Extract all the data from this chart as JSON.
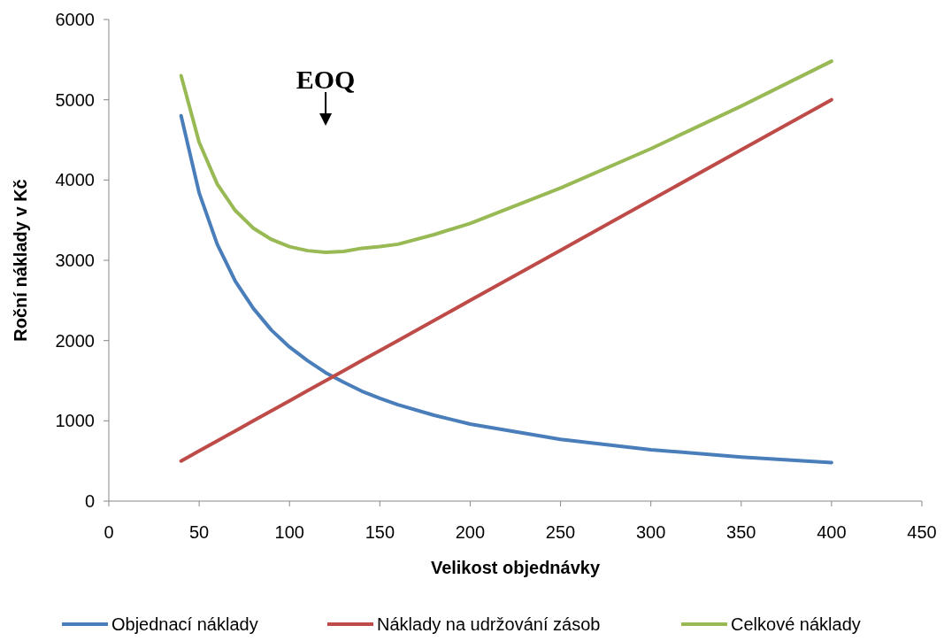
{
  "chart_data": {
    "type": "line",
    "xlabel": "Velikost objednávky",
    "ylabel": "Roční náklady v Kč",
    "x": [
      40,
      50,
      60,
      70,
      80,
      90,
      100,
      110,
      120,
      130,
      140,
      150,
      160,
      180,
      200,
      250,
      300,
      350,
      400
    ],
    "series": [
      {
        "name": "Objednací náklady",
        "color": "#4a7ebb",
        "values": [
          4800,
          3840,
          3200,
          2740,
          2400,
          2130,
          1920,
          1750,
          1600,
          1480,
          1370,
          1280,
          1200,
          1070,
          960,
          770,
          640,
          550,
          480
        ]
      },
      {
        "name": "Náklady na udržování zásob",
        "color": "#be4b48",
        "values": [
          500,
          625,
          750,
          875,
          1000,
          1125,
          1250,
          1375,
          1500,
          1625,
          1750,
          1875,
          2000,
          2250,
          2500,
          3125,
          3750,
          4375,
          5000
        ]
      },
      {
        "name": "Celkové náklady",
        "color": "#98b954",
        "values": [
          5300,
          4470,
          3950,
          3620,
          3400,
          3260,
          3170,
          3120,
          3100,
          3110,
          3150,
          3170,
          3200,
          3320,
          3460,
          3900,
          4390,
          4920,
          5480
        ]
      }
    ],
    "xlim": [
      0,
      450
    ],
    "xticks": [
      0,
      50,
      100,
      150,
      200,
      250,
      300,
      350,
      400,
      450
    ],
    "ylim": [
      0,
      6000
    ],
    "yticks": [
      0,
      1000,
      2000,
      3000,
      4000,
      5000,
      6000
    ],
    "annotations": [
      "EOQ"
    ],
    "grid": false,
    "legend": "bottom",
    "marker": "none",
    "line_style": "solid"
  }
}
